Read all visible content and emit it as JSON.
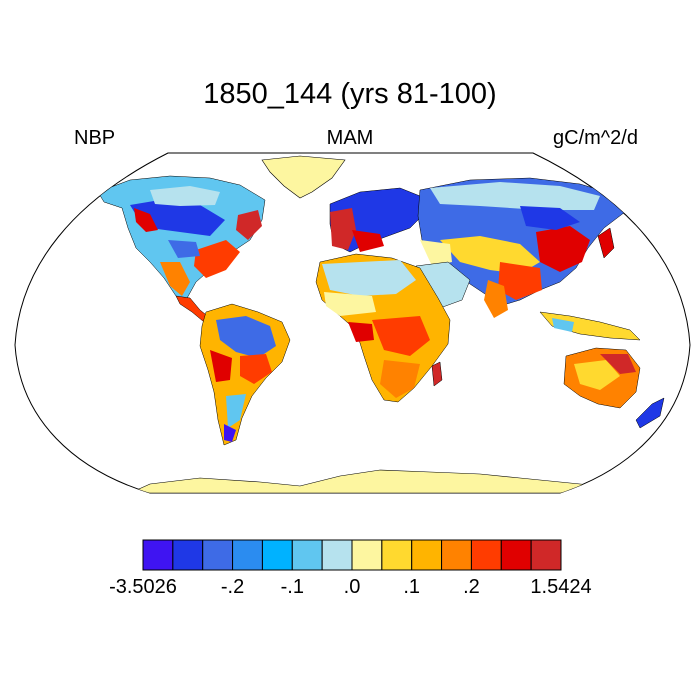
{
  "title": "1850_144 (yrs 81-100)",
  "left_label": "NBP",
  "center_label": "MAM",
  "right_label": "gC/m^2/d",
  "colorbar": {
    "colors": [
      "#3f14f2",
      "#1f38e6",
      "#3e6be6",
      "#2b8cf0",
      "#00b2ff",
      "#60c6f0",
      "#b6e2ee",
      "#fdf6a0",
      "#ffd92f",
      "#ffb400",
      "#ff8200",
      "#ff3c00",
      "#e00000",
      "#d02828"
    ],
    "labels": [
      "-3.5026",
      "-.2",
      "-.1",
      ".0",
      ".1",
      ".2",
      "1.5424"
    ]
  },
  "chart_data": {
    "type": "heatmap",
    "title": "1850_144 (yrs 81-100)",
    "variable": "NBP",
    "season": "MAM",
    "units": "gC/m^2/d",
    "range": [
      -3.5026,
      1.5424
    ],
    "color_levels": [
      -3.5026,
      -0.2,
      -0.1,
      0.0,
      0.1,
      0.2,
      1.5424
    ]
  }
}
